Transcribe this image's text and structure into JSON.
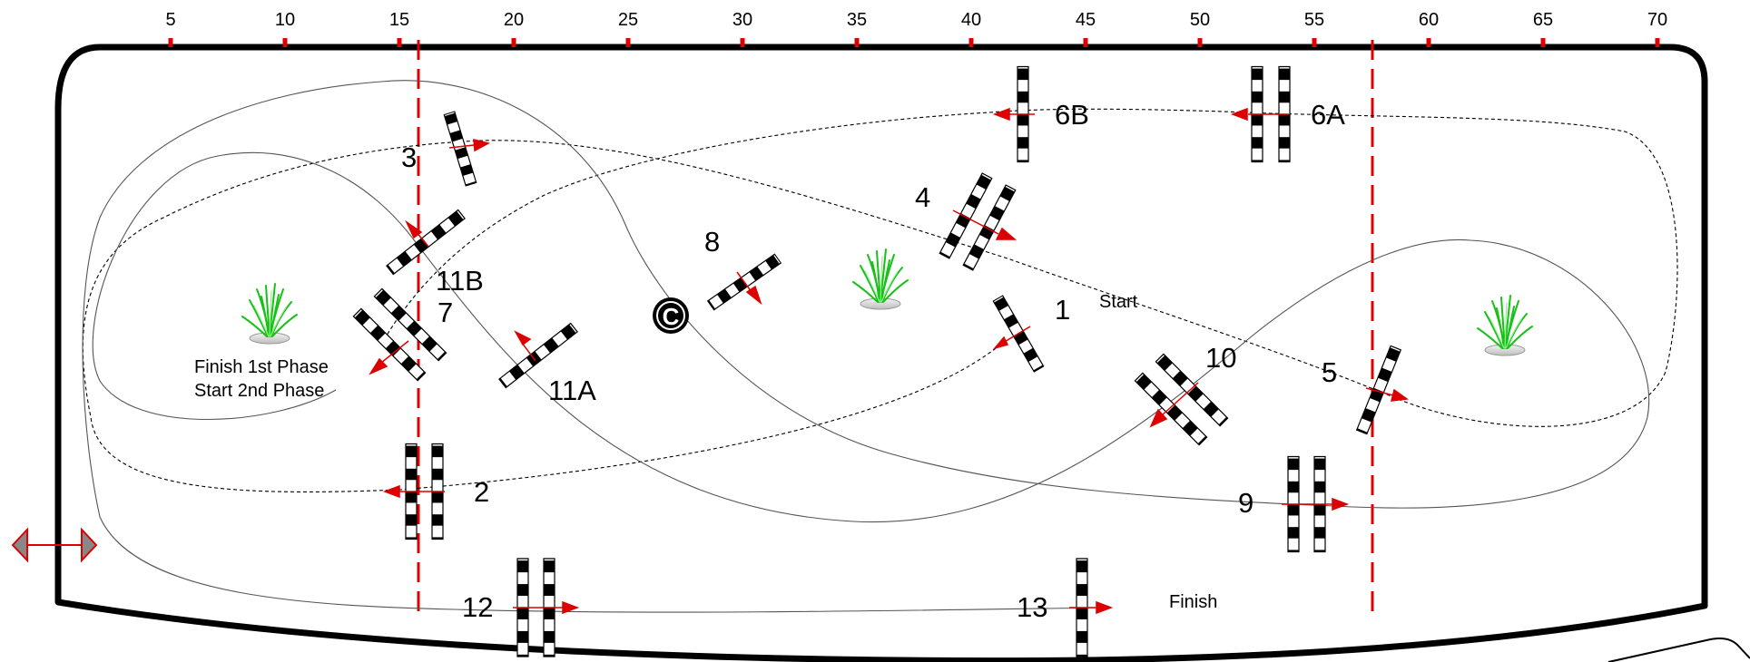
{
  "scale": {
    "ticks": [
      "5",
      "10",
      "15",
      "20",
      "25",
      "30",
      "35",
      "40",
      "45",
      "50",
      "55",
      "60",
      "65",
      "70"
    ],
    "tick_color": "#dd0000"
  },
  "jumps": [
    {
      "id": "j1",
      "number": "1"
    },
    {
      "id": "j2",
      "number": "2"
    },
    {
      "id": "j3",
      "number": "3"
    },
    {
      "id": "j4",
      "number": "4"
    },
    {
      "id": "j5",
      "number": "5"
    },
    {
      "id": "j6a",
      "number": "6A"
    },
    {
      "id": "j6b",
      "number": "6B"
    },
    {
      "id": "j7",
      "number": "7"
    },
    {
      "id": "j8",
      "number": "8"
    },
    {
      "id": "j9",
      "number": "9"
    },
    {
      "id": "j10",
      "number": "10"
    },
    {
      "id": "j11a",
      "number": "11A"
    },
    {
      "id": "j11b",
      "number": "11B"
    },
    {
      "id": "j12",
      "number": "12"
    },
    {
      "id": "j13",
      "number": "13"
    }
  ],
  "labels": {
    "start": "Start",
    "finish": "Finish",
    "phase_line1": "Finish  1st Phase",
    "phase_line2": "Start   2nd Phase"
  },
  "copyright_symbol": "C",
  "colors": {
    "arena_border": "#000000",
    "center_lines": "#dd0000",
    "arrows": "#dd0000",
    "plants": "#22cc22"
  }
}
